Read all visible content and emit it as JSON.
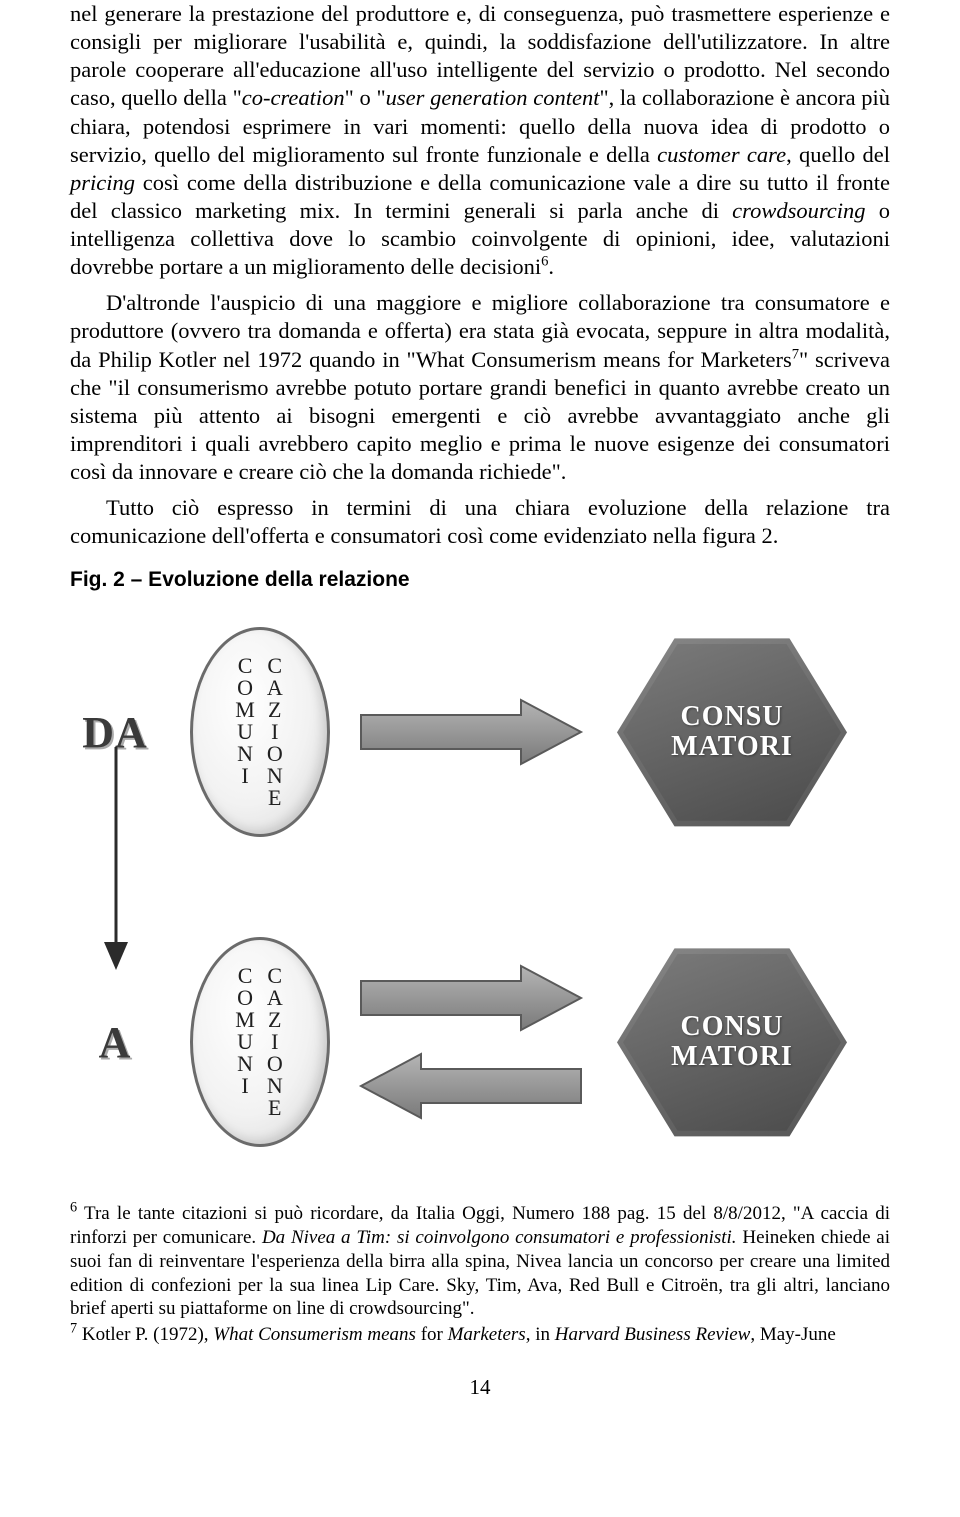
{
  "paragraphs": {
    "p1_html": "nel generare la prestazione del produttore e, di conseguenza, può trasmettere esperienze e consigli per migliorare l'usabilità e, quindi, la soddisfazione dell'utilizzatore. In altre parole cooperare all'educazione all'uso intelligente del servizio o prodotto. Nel secondo caso, quello della \"<em>co-creation</em>\" o \"<em>user generation content</em>\", la collaborazione è ancora più chiara, potendosi esprimere in vari momenti: quello della nuova idea di prodotto o servizio, quello del miglioramento sul fronte funzionale e della <em>customer care</em>, quello del <em>pricing</em> così come della distribuzione e della comunicazione vale a dire su tutto il fronte del classico marketing mix. In termini generali si parla anche di <em>crowdsourcing</em> o intelligenza collettiva dove lo scambio coinvolgente di opinioni, idee, valutazioni dovrebbe portare a un miglioramento delle decisioni<sup>6</sup>.",
    "p2_html": "D'altronde l'auspicio di una maggiore e migliore collaborazione tra consumatore e produttore (ovvero tra domanda e offerta) era stata già evocata, seppure in altra modalità, da Philip Kotler nel 1972 quando in \"What Consumerism means for Marketers<sup>7</sup>\" scriveva che \"il consumerismo avrebbe potuto portare grandi benefici in quanto avrebbe creato un sistema più attento ai bisogni emergenti e ciò avrebbe avvantaggiato anche gli imprenditori i quali avrebbero capito meglio e prima le nuove esigenze dei consumatori così da innovare e creare ciò che la domanda richiede\".",
    "p3_html": "Tutto ciò espresso in termini di una chiara evoluzione della relazione tra comunicazione dell'offerta e consumatori così come evidenziato nella figura 2."
  },
  "figure": {
    "title": "Fig. 2 – Evoluzione della relazione",
    "da_label": "DA",
    "a_label": "A",
    "oval_col1": "C\nO\nM\nU\nN\nI",
    "oval_col2": "C\nA\nZ\nI\nO\nN\nE",
    "hex_line1": "CONSU",
    "hex_line2": "MATORI",
    "colors": {
      "oval_border": "#6b6b6b",
      "oval_fill_light": "#ffffff",
      "oval_fill_dark": "#d4d4d4",
      "arrow_fill": "#9a9a9a",
      "arrow_stroke": "#5a5a5a",
      "hex_fill_light": "#7c7c7c",
      "hex_fill_dark": "#4a4a4a",
      "hex_text": "#ffffff",
      "da_text": "#3a3a3a",
      "vert_arrow": "#2b2b2b"
    },
    "top_row_arrows": [
      "right"
    ],
    "bottom_row_arrows": [
      "right",
      "left"
    ]
  },
  "footnotes": {
    "fn6_html": "<sup>6</sup> Tra le tante citazioni si può ricordare, da Italia Oggi, Numero 188 pag. 15 del 8/8/2012, \"A caccia di rinforzi per comunicare. <em>Da Nivea a Tim: si coinvolgono consumatori e professionisti.</em> Heineken chiede ai suoi fan di reinventare l'esperienza della birra alla spina, Nivea lancia un concorso per creare una limited edition di confezioni per la sua linea Lip Care. Sky, Tim, Ava, Red Bull e Citroën, tra gli altri, lanciano brief aperti su piattaforme on line di crowdsourcing\".",
    "fn7_html": "<sup>7</sup> Kotler P. (1972), <em>What Consumerism means</em> for <em>Marketers</em>, in <em>Harvard Business Review</em>, May-June"
  },
  "page_number": "14"
}
